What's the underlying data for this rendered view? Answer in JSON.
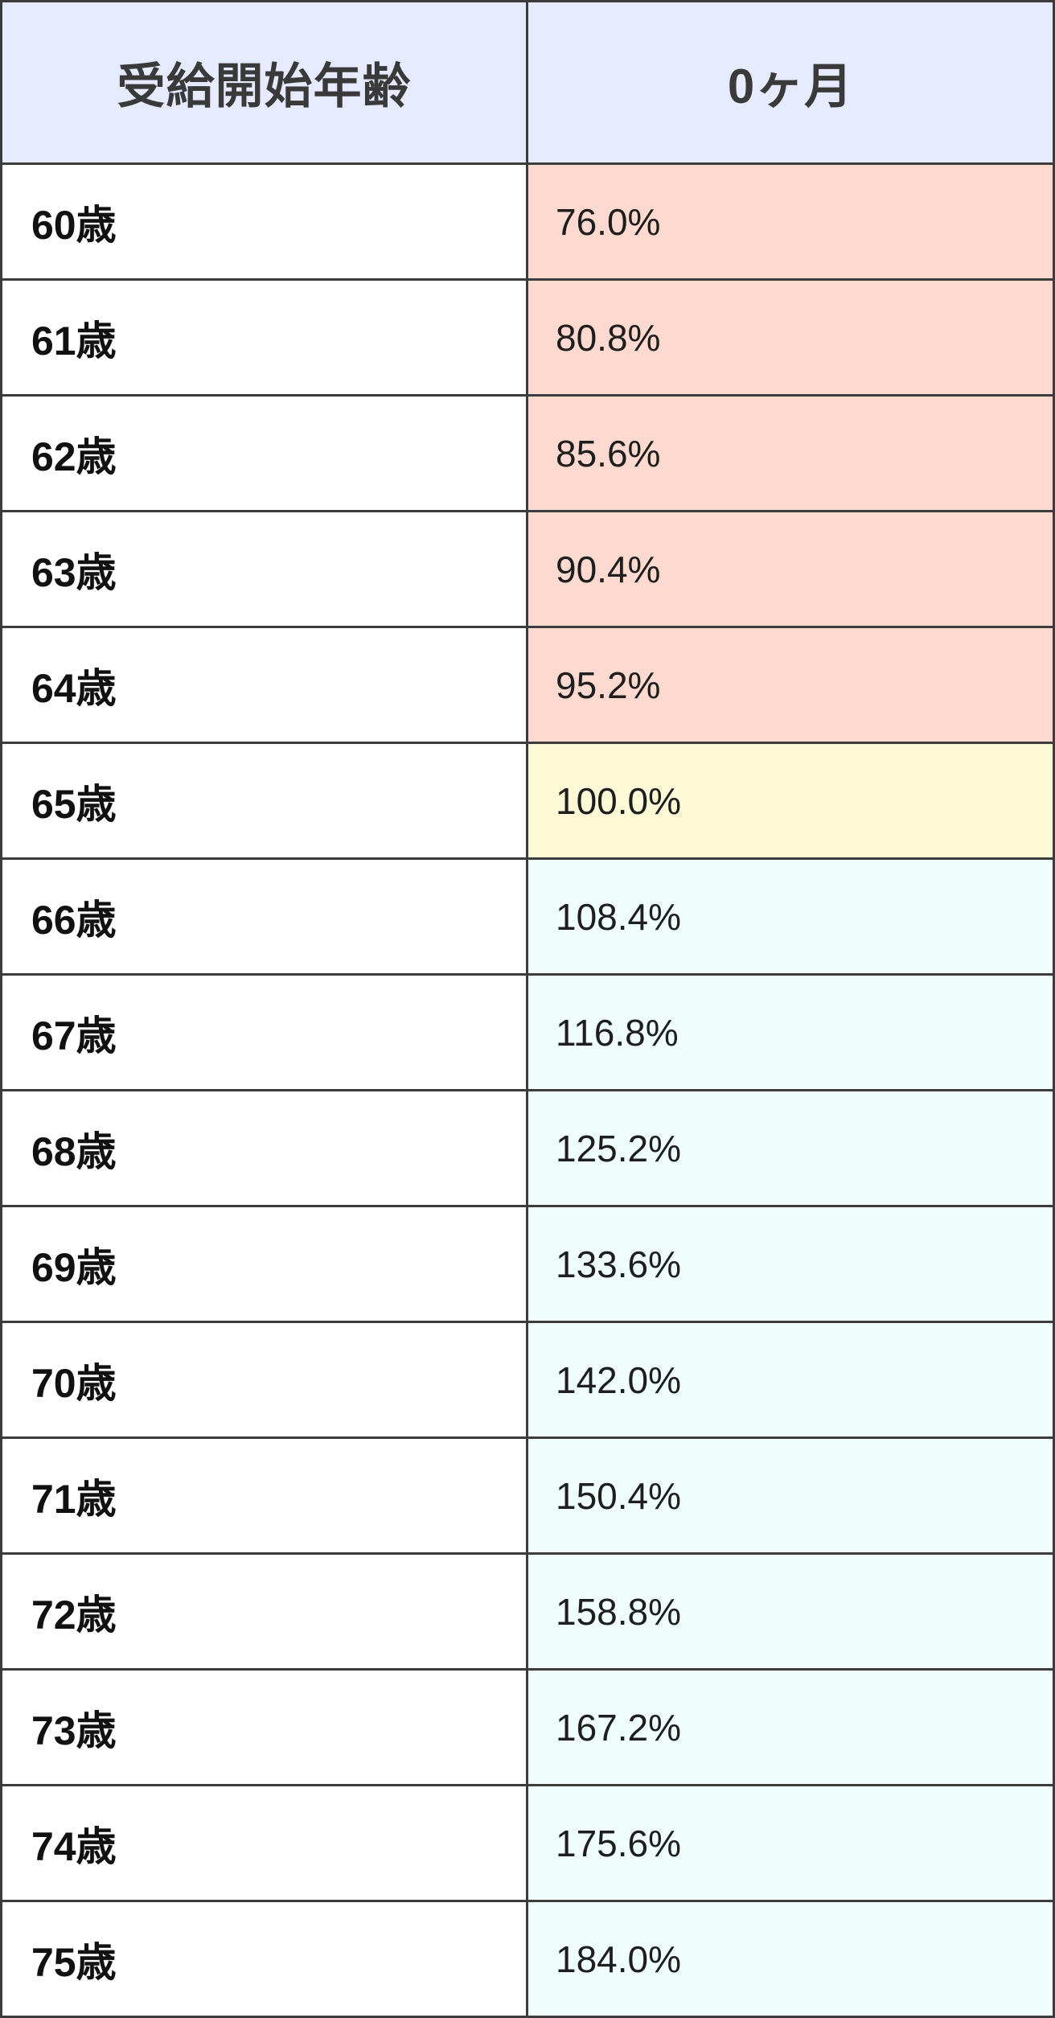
{
  "header": {
    "col1": "受給開始年齢",
    "col2": "0ヶ月"
  },
  "colors": {
    "header_bg": "#e6ebff",
    "reduced_bg": "#fdd9cf",
    "base_bg": "#fdf8d6",
    "increased_bg": "#effdfd"
  },
  "rows": [
    {
      "age": "60歳",
      "rate": "76.0%",
      "tone": "reduced"
    },
    {
      "age": "61歳",
      "rate": "80.8%",
      "tone": "reduced"
    },
    {
      "age": "62歳",
      "rate": "85.6%",
      "tone": "reduced"
    },
    {
      "age": "63歳",
      "rate": "90.4%",
      "tone": "reduced"
    },
    {
      "age": "64歳",
      "rate": "95.2%",
      "tone": "reduced"
    },
    {
      "age": "65歳",
      "rate": "100.0%",
      "tone": "base"
    },
    {
      "age": "66歳",
      "rate": "108.4%",
      "tone": "increased"
    },
    {
      "age": "67歳",
      "rate": "116.8%",
      "tone": "increased"
    },
    {
      "age": "68歳",
      "rate": "125.2%",
      "tone": "increased"
    },
    {
      "age": "69歳",
      "rate": "133.6%",
      "tone": "increased"
    },
    {
      "age": "70歳",
      "rate": "142.0%",
      "tone": "increased"
    },
    {
      "age": "71歳",
      "rate": "150.4%",
      "tone": "increased"
    },
    {
      "age": "72歳",
      "rate": "158.8%",
      "tone": "increased"
    },
    {
      "age": "73歳",
      "rate": "167.2%",
      "tone": "increased"
    },
    {
      "age": "74歳",
      "rate": "175.6%",
      "tone": "increased"
    },
    {
      "age": "75歳",
      "rate": "184.0%",
      "tone": "increased"
    }
  ]
}
